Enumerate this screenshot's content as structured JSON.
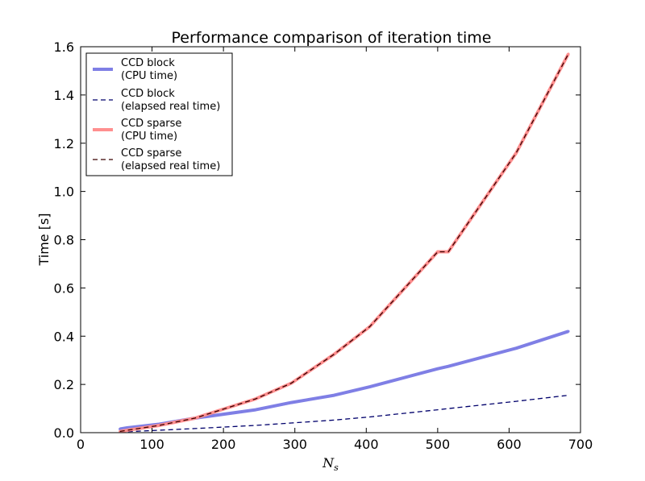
{
  "chart_data": {
    "type": "line",
    "title": "Performance comparison of iteration time",
    "xlabel": "N",
    "xlabel_sub": "s",
    "ylabel": "Time [s]",
    "xlim": [
      0,
      700
    ],
    "ylim": [
      0,
      1.6
    ],
    "xticks": [
      0,
      100,
      200,
      300,
      400,
      500,
      600,
      700
    ],
    "yticks": [
      0.0,
      0.2,
      0.4,
      0.6,
      0.8,
      1.0,
      1.2,
      1.4,
      1.6
    ],
    "xtick_labels": [
      "0",
      "100",
      "200",
      "300",
      "400",
      "500",
      "600",
      "700"
    ],
    "ytick_labels": [
      "0.0",
      "0.2",
      "0.4",
      "0.6",
      "0.8",
      "1.0",
      "1.2",
      "1.4",
      "1.6"
    ],
    "grid": false,
    "legend_position": "top-left",
    "series": [
      {
        "name_line1": "CCD block",
        "name_line2": "(CPU time)",
        "color": "#7f7fe5",
        "style": "solid-thick",
        "x": [
          55,
          65,
          110,
          160,
          245,
          295,
          355,
          405,
          500,
          515,
          610,
          683
        ],
        "y": [
          0.015,
          0.02,
          0.035,
          0.06,
          0.095,
          0.125,
          0.155,
          0.19,
          0.265,
          0.275,
          0.35,
          0.42
        ]
      },
      {
        "name_line1": "CCD block",
        "name_line2": "(elapsed real time)",
        "color": "#00006b",
        "style": "dashed",
        "x": [
          55,
          65,
          110,
          160,
          245,
          295,
          355,
          405,
          500,
          515,
          610,
          683
        ],
        "y": [
          0.003,
          0.004,
          0.01,
          0.017,
          0.03,
          0.04,
          0.052,
          0.065,
          0.095,
          0.1,
          0.13,
          0.155
        ]
      },
      {
        "name_line1": "CCD sparse",
        "name_line2": "(CPU time)",
        "color": "#ff8f8f",
        "style": "solid-thick",
        "x": [
          55,
          65,
          110,
          160,
          245,
          295,
          355,
          405,
          500,
          515,
          610,
          683
        ],
        "y": [
          0.005,
          0.01,
          0.03,
          0.06,
          0.14,
          0.205,
          0.325,
          0.44,
          0.75,
          0.75,
          1.16,
          1.57
        ]
      },
      {
        "name_line1": "CCD sparse",
        "name_line2": "(elapsed real time)",
        "color": "#3a0000",
        "style": "dashed",
        "x": [
          55,
          65,
          110,
          160,
          245,
          295,
          355,
          405,
          500,
          515,
          610,
          683
        ],
        "y": [
          0.005,
          0.01,
          0.03,
          0.06,
          0.14,
          0.205,
          0.325,
          0.44,
          0.75,
          0.75,
          1.16,
          1.57
        ]
      }
    ]
  }
}
